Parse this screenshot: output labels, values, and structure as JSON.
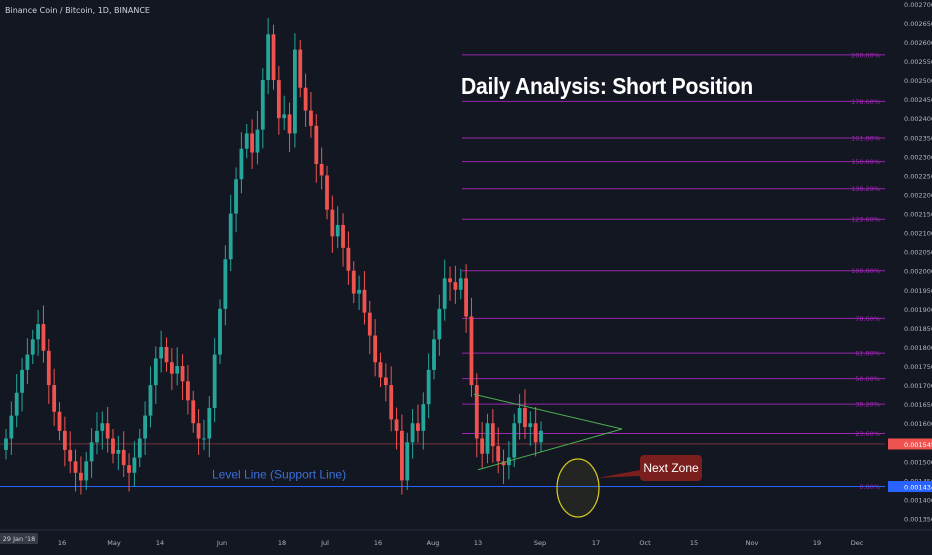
{
  "header": {
    "symbol": "Binance Coin / Bitcoin, 1D, BINANCE"
  },
  "annotations": {
    "title": "Daily Analysis: Short Position",
    "support_label": "Level Line (Support Line)",
    "next_zone_label": "Next Zone"
  },
  "colors": {
    "background": "#131722",
    "up": "#26a69a",
    "down": "#ef5350",
    "fib": "#9c27b0",
    "support": "#2962ff",
    "triangle": "#4caf50",
    "circle": "#d4c81f",
    "next_zone": "#7a1e1e"
  },
  "chart_data": {
    "type": "candlestick",
    "price_ticks": [
      "0.0027000",
      "0.0026500",
      "0.0026000",
      "0.0025500",
      "0.0025000",
      "0.0024500",
      "0.0024000",
      "0.0023500",
      "0.0023000",
      "0.0022500",
      "0.0022000",
      "0.0021500",
      "0.0021000",
      "0.0020500",
      "0.0020000",
      "0.0019500",
      "0.0019000",
      "0.0018500",
      "0.0018000",
      "0.0017500",
      "0.0017000",
      "0.0016500",
      "0.0016000",
      "0.0015500",
      "0.0015000",
      "0.0014500",
      "0.0014000",
      "0.0013500"
    ],
    "time_ticks": [
      "29 Jan '18",
      "16",
      "May",
      "14",
      "Jun",
      "18",
      "Jul",
      "16",
      "Aug",
      "13",
      "Sep",
      "17",
      "Oct",
      "15",
      "Nov",
      "19",
      "Dec"
    ],
    "y_range": [
      0.00132,
      0.00271
    ],
    "current_price": {
      "label": "0.0015456",
      "value": 0.0015456
    },
    "support_price": {
      "label": "0.0014340",
      "value": 0.001434
    },
    "fib_levels": [
      {
        "label": "0.00%",
        "value": 0.001434
      },
      {
        "label": "23.60%",
        "value": 0.001573
      },
      {
        "label": "38.20%",
        "value": 0.00165
      },
      {
        "label": "50.00%",
        "value": 0.001717
      },
      {
        "label": "61.80%",
        "value": 0.001784
      },
      {
        "label": "78.60%",
        "value": 0.001875
      },
      {
        "label": "100.00%",
        "value": 0.002
      },
      {
        "label": "123.60%",
        "value": 0.002135
      },
      {
        "label": "138.20%",
        "value": 0.002215
      },
      {
        "label": "150.00%",
        "value": 0.002286
      },
      {
        "label": "161.80%",
        "value": 0.002348
      },
      {
        "label": "178.60%",
        "value": 0.002444
      },
      {
        "label": "200.00%",
        "value": 0.002566
      }
    ],
    "price_path": [
      0.00156,
      0.00162,
      0.00168,
      0.00174,
      0.00178,
      0.00182,
      0.00186,
      0.00179,
      0.0017,
      0.00163,
      0.00158,
      0.00153,
      0.0015,
      0.00147,
      0.00145,
      0.0015,
      0.00155,
      0.00158,
      0.0016,
      0.00156,
      0.00152,
      0.00153,
      0.00149,
      0.00147,
      0.00151,
      0.00156,
      0.00162,
      0.0017,
      0.00177,
      0.0018,
      0.00176,
      0.00173,
      0.00175,
      0.00171,
      0.00166,
      0.0016,
      0.00156,
      0.00156,
      0.00164,
      0.00178,
      0.0019,
      0.00203,
      0.00215,
      0.00224,
      0.00232,
      0.00236,
      0.00231,
      0.00237,
      0.0025,
      0.00262,
      0.0025,
      0.0024,
      0.00241,
      0.00236,
      0.00258,
      0.00248,
      0.00242,
      0.00238,
      0.00228,
      0.00225,
      0.00216,
      0.00209,
      0.00212,
      0.00206,
      0.002,
      0.00194,
      0.00195,
      0.00189,
      0.00183,
      0.00176,
      0.00172,
      0.0017,
      0.00161,
      0.00158,
      0.00145,
      0.00155,
      0.0016,
      0.00158,
      0.00165,
      0.00174,
      0.00182,
      0.0019,
      0.00198,
      0.00197,
      0.00195,
      0.00198,
      0.00188,
      0.0017,
      0.00156,
      0.00152,
      0.0016,
      0.00154,
      0.0015,
      0.00149,
      0.00151,
      0.0016,
      0.00164,
      0.00159,
      0.0016,
      0.00155,
      0.00158
    ],
    "triangle": {
      "upper_start": 0.001676,
      "apex": 0.001585,
      "lower_start": 0.001478
    }
  }
}
